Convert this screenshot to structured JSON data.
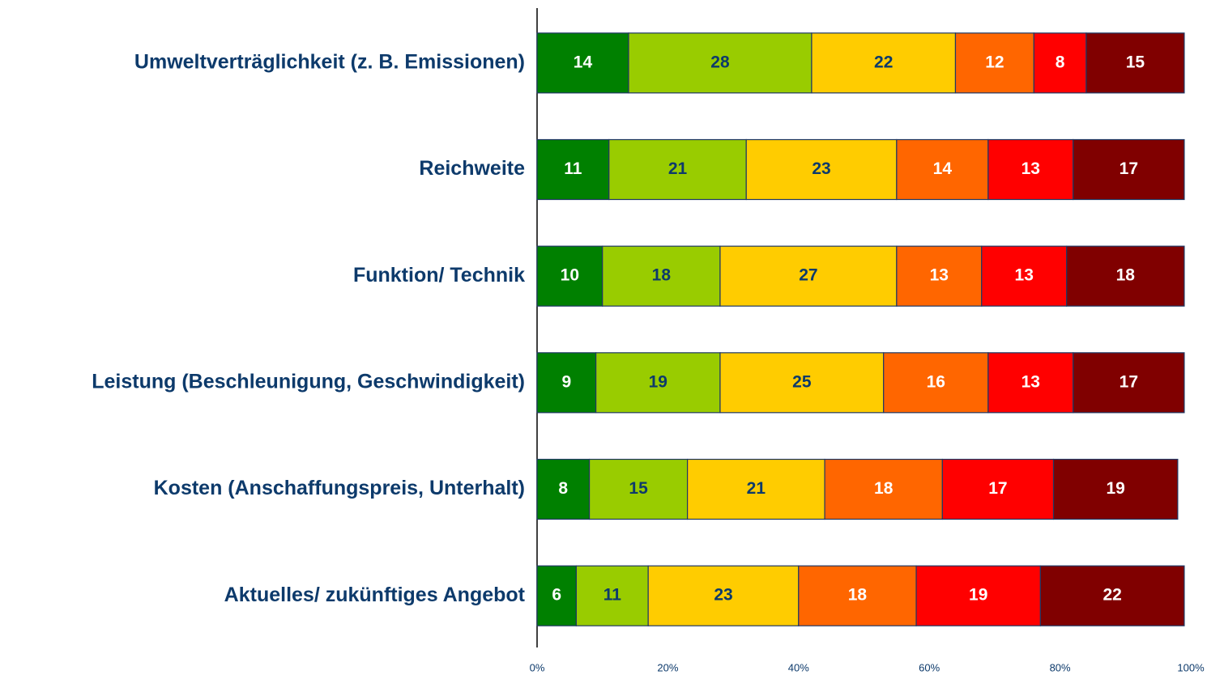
{
  "chart_data": {
    "type": "stacked_barh",
    "categories": [
      "Umweltverträglichkeit (z. B. Emissionen)",
      "Reichweite",
      "Funktion/ Technik",
      "Leistung (Beschleunigung, Geschwindigkeit)",
      "Kosten (Anschaffungspreis, Unterhalt)",
      "Aktuelles/ zukünftiges Angebot"
    ],
    "series": [
      {
        "color": "#008000",
        "text_color": "#ffffff",
        "values": [
          14,
          11,
          10,
          9,
          8,
          6
        ]
      },
      {
        "color": "#99cc00",
        "text_color": "#0d3a6b",
        "values": [
          28,
          21,
          18,
          19,
          15,
          11
        ]
      },
      {
        "color": "#ffcc00",
        "text_color": "#0d3a6b",
        "values": [
          22,
          23,
          27,
          25,
          21,
          23
        ]
      },
      {
        "color": "#ff6600",
        "text_color": "#ffffff",
        "values": [
          12,
          14,
          13,
          16,
          18,
          18
        ]
      },
      {
        "color": "#ff0000",
        "text_color": "#ffffff",
        "values": [
          8,
          13,
          13,
          13,
          17,
          19
        ]
      },
      {
        "color": "#800000",
        "text_color": "#ffffff",
        "values": [
          15,
          17,
          18,
          17,
          19,
          22
        ]
      }
    ],
    "xlim": [
      0,
      100
    ],
    "xticks": [
      {
        "value": 0,
        "label": "0%"
      },
      {
        "value": 20,
        "label": "20%"
      },
      {
        "value": 40,
        "label": "40%"
      },
      {
        "value": 60,
        "label": "60%"
      },
      {
        "value": 80,
        "label": "80%"
      },
      {
        "value": 100,
        "label": "100%"
      }
    ],
    "grid": false
  }
}
